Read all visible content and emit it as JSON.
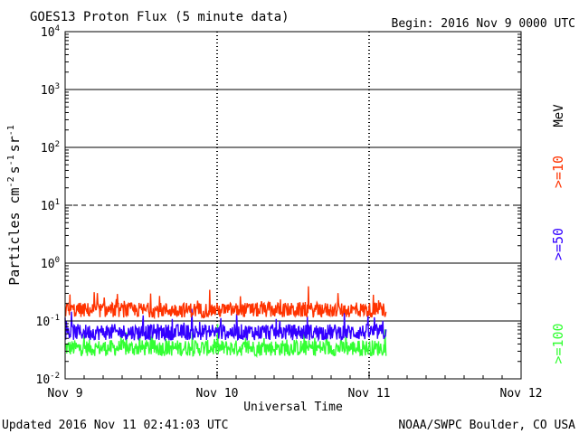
{
  "header": {
    "title": "GOES13 Proton Flux (5 minute data)",
    "begin": "Begin: 2016 Nov 9 0000 UTC"
  },
  "footer": {
    "updated": "Updated 2016 Nov 11 02:41:03 UTC",
    "credit": "NOAA/SWPC Boulder, CO USA"
  },
  "chart_data": {
    "type": "line",
    "title": "GOES13 Proton Flux (5 minute data)",
    "xlabel": "Universal Time",
    "ylabel_parts": [
      "Particles cm",
      "-2",
      "s",
      "-1",
      "sr",
      "-1"
    ],
    "yscale": "log",
    "ylim": [
      0.01,
      10000
    ],
    "y_ticks": [
      {
        "value": 10000,
        "mantissa": "10",
        "exp": "4"
      },
      {
        "value": 1000,
        "mantissa": "10",
        "exp": "3"
      },
      {
        "value": 100,
        "mantissa": "10",
        "exp": "2"
      },
      {
        "value": 10,
        "mantissa": "10",
        "exp": "1"
      },
      {
        "value": 1,
        "mantissa": "10",
        "exp": "0"
      },
      {
        "value": 0.1,
        "mantissa": "10",
        "exp": "-1"
      },
      {
        "value": 0.01,
        "mantissa": "10",
        "exp": "-2"
      }
    ],
    "x_ticks": [
      "Nov 9",
      "Nov 10",
      "Nov 11",
      "Nov 12"
    ],
    "x_range_hours": [
      0,
      72
    ],
    "data_end_hour": 50.7,
    "grid": {
      "solid_at": [
        1000,
        100,
        1,
        0.1
      ],
      "dashed_at": [
        10
      ],
      "dotted_days": true
    },
    "unit_label": "MeV",
    "series": [
      {
        "name": ">=10",
        "color": "#ff3300",
        "baseline": 0.15,
        "spread": 0.13
      },
      {
        "name": ">=50",
        "color": "#3300ff",
        "baseline": 0.062,
        "spread": 0.14
      },
      {
        "name": ">=100",
        "color": "#33ff33",
        "baseline": 0.033,
        "spread": 0.14
      }
    ]
  }
}
